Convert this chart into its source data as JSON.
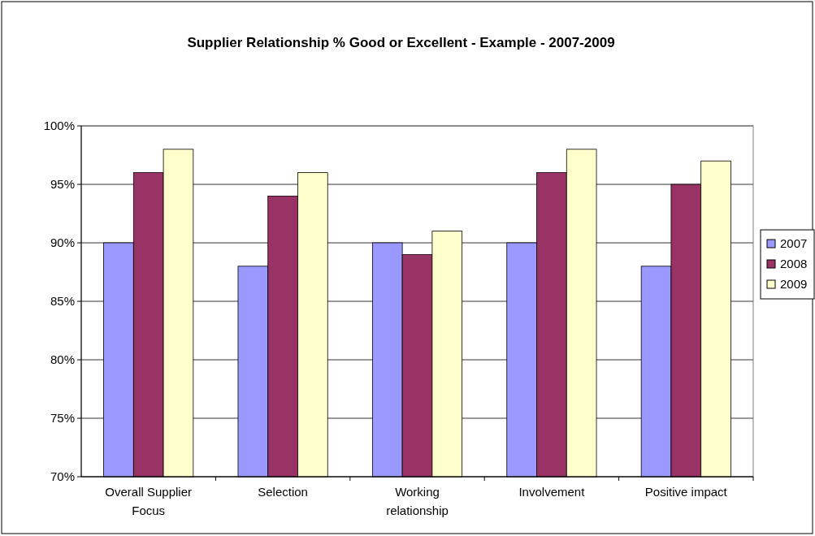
{
  "chart_data": {
    "type": "bar",
    "title": "Supplier Relationship % Good or Excellent - Example - 2007-2009",
    "categories": [
      "Overall Supplier Focus",
      "Selection",
      "Working relationship",
      "Involvement",
      "Positive impact"
    ],
    "series": [
      {
        "name": "2007",
        "color": "#9999ff",
        "values": [
          90,
          88,
          90,
          90,
          88
        ]
      },
      {
        "name": "2008",
        "color": "#993366",
        "values": [
          96,
          94,
          89,
          96,
          95
        ]
      },
      {
        "name": "2009",
        "color": "#ffffcc",
        "values": [
          98,
          96,
          91,
          98,
          97
        ]
      }
    ],
    "ylim": [
      70,
      100
    ],
    "yticks": [
      {
        "value": 70,
        "label": "70%"
      },
      {
        "value": 75,
        "label": "75%"
      },
      {
        "value": 80,
        "label": "80%"
      },
      {
        "value": 85,
        "label": "85%"
      },
      {
        "value": 90,
        "label": "90%"
      },
      {
        "value": 95,
        "label": "95%"
      },
      {
        "value": 100,
        "label": "100%"
      }
    ],
    "grid": "y",
    "legend": "right"
  }
}
